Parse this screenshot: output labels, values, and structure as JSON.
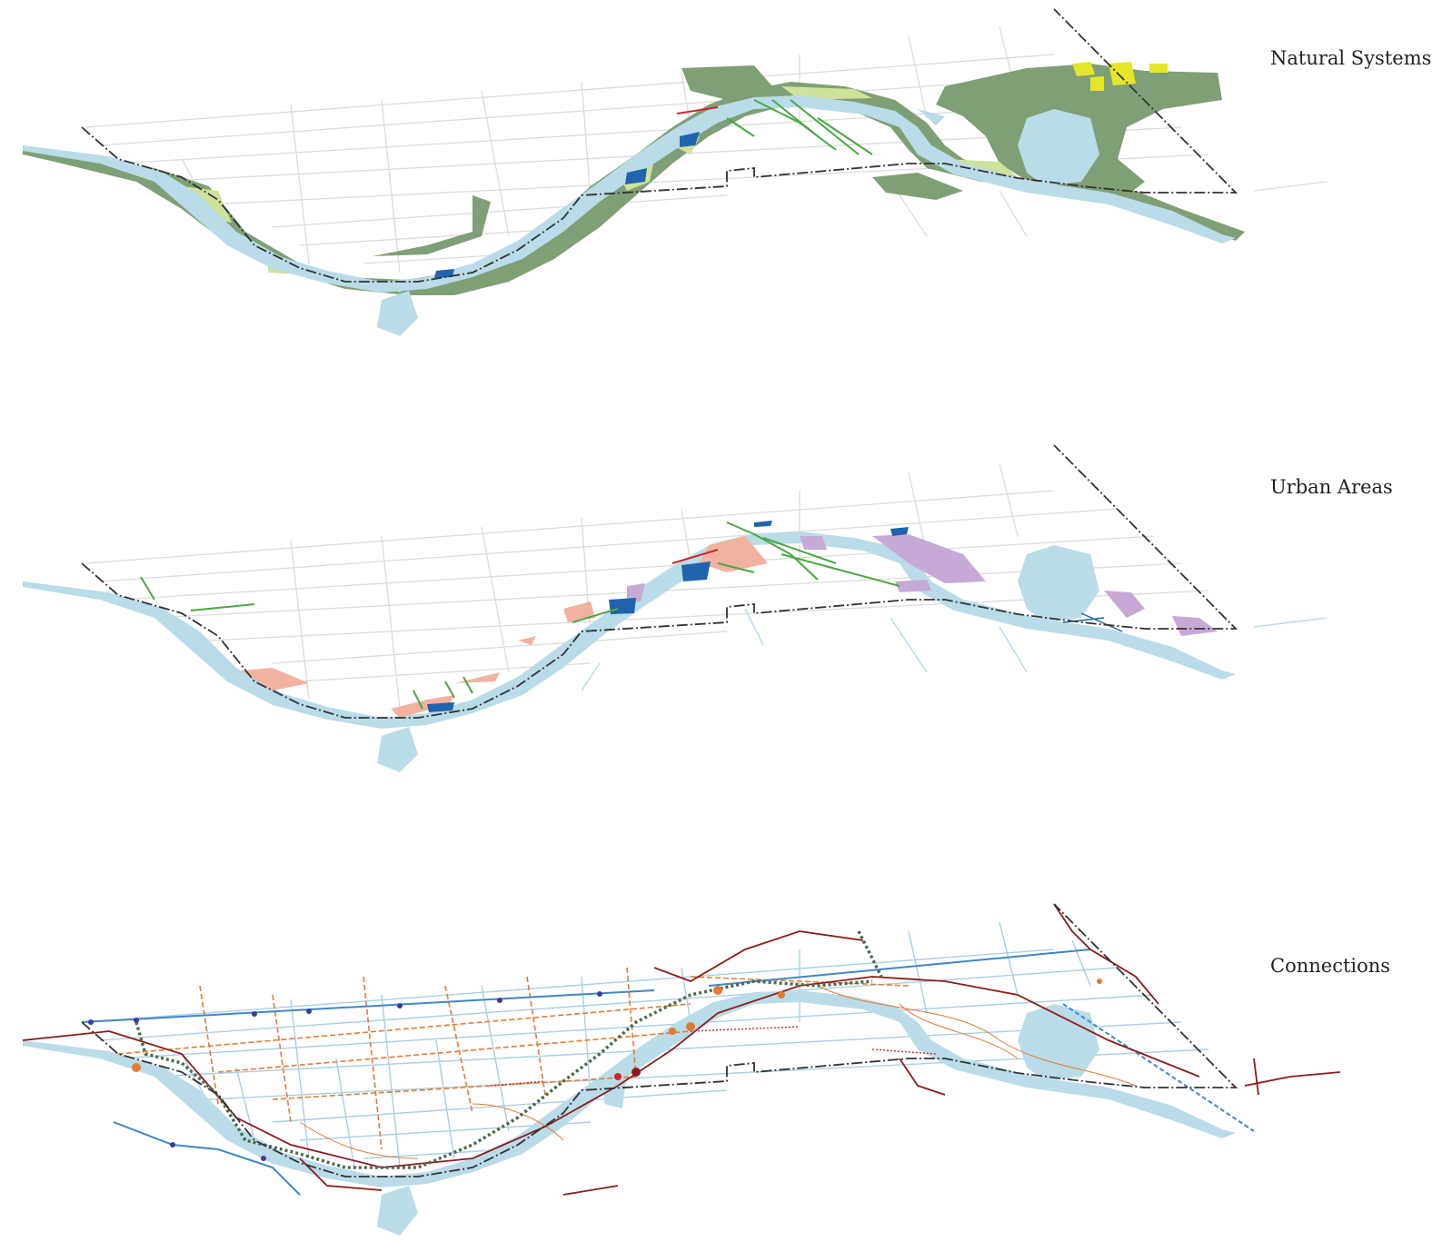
{
  "layers": [
    {
      "label": "Natural Systems"
    },
    {
      "label": "Urban Areas"
    },
    {
      "label": "Connections"
    }
  ],
  "colors": {
    "water": "#b9dce8",
    "parkland": "#7f9f76",
    "light_green": "#cfe29a",
    "yellow": "#e5e62a",
    "blue_patch": "#1f64ad",
    "salmon": "#f2b2a0",
    "lavender": "#c7a9d6",
    "green_line": "#49a843",
    "boundary": "#333333",
    "road_grey": "#d9d9d9",
    "road_light_blue": "#a9cfe5",
    "transit_blue": "#3f86c8",
    "rail_red": "#8e1b1b",
    "orange_dash": "#e57a33",
    "dotted_green": "#4b6b4b"
  }
}
